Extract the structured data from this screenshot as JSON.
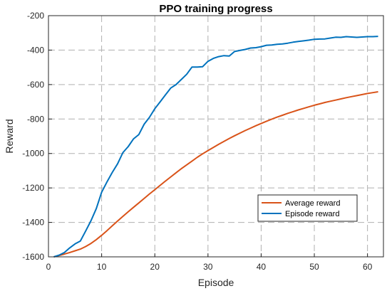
{
  "chart_data": {
    "type": "line",
    "title": "PPO training progress",
    "xlabel": "Episode",
    "ylabel": "Reward",
    "xlim": [
      0,
      63
    ],
    "ylim": [
      -1600,
      -200
    ],
    "xticks": [
      0,
      10,
      20,
      30,
      40,
      50,
      60
    ],
    "yticks": [
      -1600,
      -1400,
      -1200,
      -1000,
      -800,
      -600,
      -400,
      -200
    ],
    "grid": true,
    "grid_style": "dashed",
    "legend_position": "lower-right",
    "series": [
      {
        "name": "Average reward",
        "color": "#D95319",
        "x": [
          1,
          2,
          3,
          4,
          5,
          6,
          7,
          8,
          9,
          10,
          11,
          12,
          13,
          14,
          15,
          16,
          17,
          18,
          19,
          20,
          21,
          22,
          23,
          24,
          25,
          26,
          27,
          28,
          29,
          30,
          31,
          32,
          33,
          34,
          35,
          36,
          37,
          38,
          39,
          40,
          41,
          42,
          43,
          44,
          45,
          46,
          47,
          48,
          49,
          50,
          51,
          52,
          53,
          54,
          55,
          56,
          57,
          58,
          59,
          60,
          61,
          62
        ],
        "values": [
          -1600,
          -1592,
          -1584,
          -1575,
          -1565,
          -1555,
          -1540,
          -1522,
          -1500,
          -1475,
          -1448,
          -1420,
          -1392,
          -1365,
          -1338,
          -1312,
          -1287,
          -1261,
          -1235,
          -1210,
          -1185,
          -1160,
          -1136,
          -1112,
          -1088,
          -1066,
          -1044,
          -1022,
          -1002,
          -983,
          -965,
          -947,
          -930,
          -913,
          -897,
          -882,
          -867,
          -853,
          -839,
          -826,
          -813,
          -801,
          -789,
          -778,
          -767,
          -757,
          -747,
          -738,
          -729,
          -720,
          -712,
          -704,
          -697,
          -690,
          -683,
          -676,
          -670,
          -664,
          -658,
          -652,
          -647,
          -642
        ]
      },
      {
        "name": "Episode reward",
        "color": "#0072BD",
        "x": [
          1,
          2,
          3,
          4,
          5,
          6,
          7,
          8,
          9,
          10,
          11,
          12,
          13,
          14,
          15,
          16,
          17,
          18,
          19,
          20,
          21,
          22,
          23,
          24,
          25,
          26,
          27,
          28,
          29,
          30,
          31,
          32,
          33,
          34,
          35,
          36,
          37,
          38,
          39,
          40,
          41,
          42,
          43,
          44,
          45,
          46,
          47,
          48,
          49,
          50,
          51,
          52,
          53,
          54,
          55,
          56,
          57,
          58,
          59,
          60,
          61,
          62
        ],
        "values": [
          -1600,
          -1590,
          -1575,
          -1548,
          -1525,
          -1508,
          -1450,
          -1390,
          -1320,
          -1225,
          -1165,
          -1110,
          -1060,
          -995,
          -960,
          -915,
          -890,
          -830,
          -790,
          -740,
          -700,
          -660,
          -620,
          -600,
          -570,
          -540,
          -498,
          -498,
          -496,
          -465,
          -448,
          -438,
          -432,
          -434,
          -408,
          -402,
          -396,
          -388,
          -386,
          -380,
          -372,
          -370,
          -366,
          -364,
          -360,
          -354,
          -350,
          -346,
          -342,
          -337,
          -336,
          -335,
          -330,
          -325,
          -326,
          -322,
          -324,
          -326,
          -324,
          -322,
          -322,
          -320
        ]
      }
    ]
  }
}
